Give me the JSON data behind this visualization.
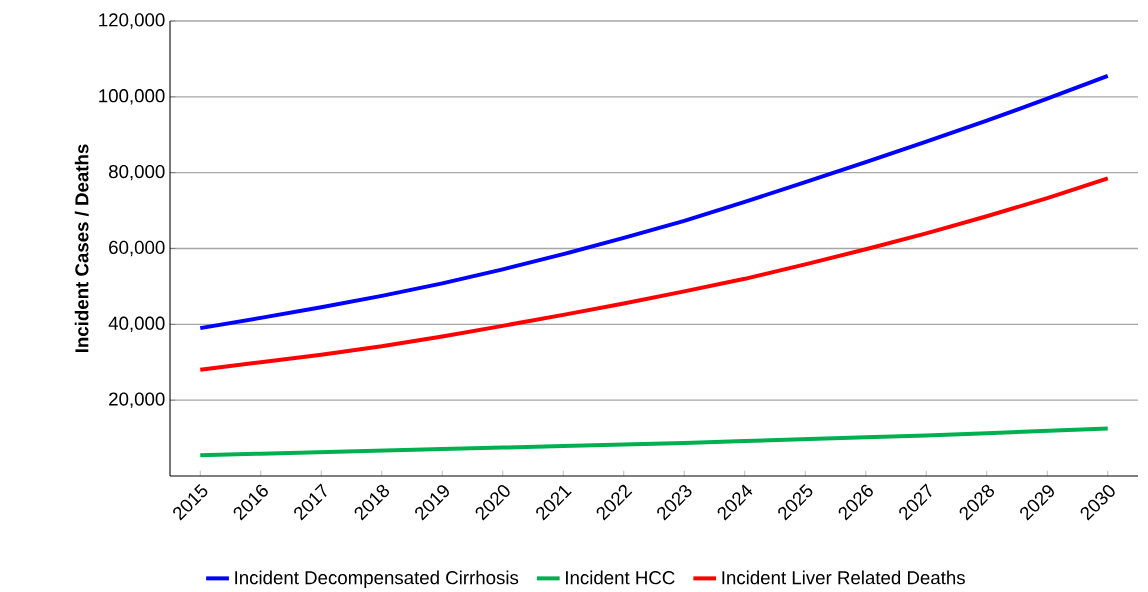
{
  "chart_data": {
    "type": "line",
    "ylabel": "Incident Cases / Deaths",
    "categories": [
      "2015",
      "2016",
      "2017",
      "2018",
      "2019",
      "2020",
      "2021",
      "2022",
      "2023",
      "2024",
      "2025",
      "2026",
      "2027",
      "2028",
      "2029",
      "2030"
    ],
    "series": [
      {
        "name": "Incident Decompensated Cirrhosis",
        "color": "#0000ff",
        "values": [
          39000,
          41700,
          44500,
          47500,
          50800,
          54500,
          58500,
          62800,
          67300,
          72300,
          77500,
          82800,
          88200,
          93700,
          99500,
          105500
        ]
      },
      {
        "name": "Incident HCC",
        "color": "#00b050",
        "values": [
          5500,
          5900,
          6300,
          6700,
          7100,
          7500,
          7900,
          8300,
          8700,
          9200,
          9700,
          10200,
          10700,
          11300,
          11900,
          12500
        ]
      },
      {
        "name": "Incident Liver Related Deaths",
        "color": "#ff0000",
        "values": [
          28000,
          30000,
          32000,
          34200,
          36800,
          39600,
          42500,
          45500,
          48700,
          52000,
          55800,
          59800,
          64000,
          68500,
          73300,
          78500
        ]
      }
    ],
    "ylim": [
      0,
      120000
    ],
    "yticks": [
      {
        "value": 20000,
        "label": "20,000"
      },
      {
        "value": 40000,
        "label": "40,000"
      },
      {
        "value": 60000,
        "label": "60,000"
      },
      {
        "value": 80000,
        "label": "80,000"
      },
      {
        "value": 100000,
        "label": "100,000"
      },
      {
        "value": 120000,
        "label": "120,000"
      }
    ],
    "grid": "y",
    "legend": "bottom",
    "marker": "none",
    "line_style": "solid"
  }
}
